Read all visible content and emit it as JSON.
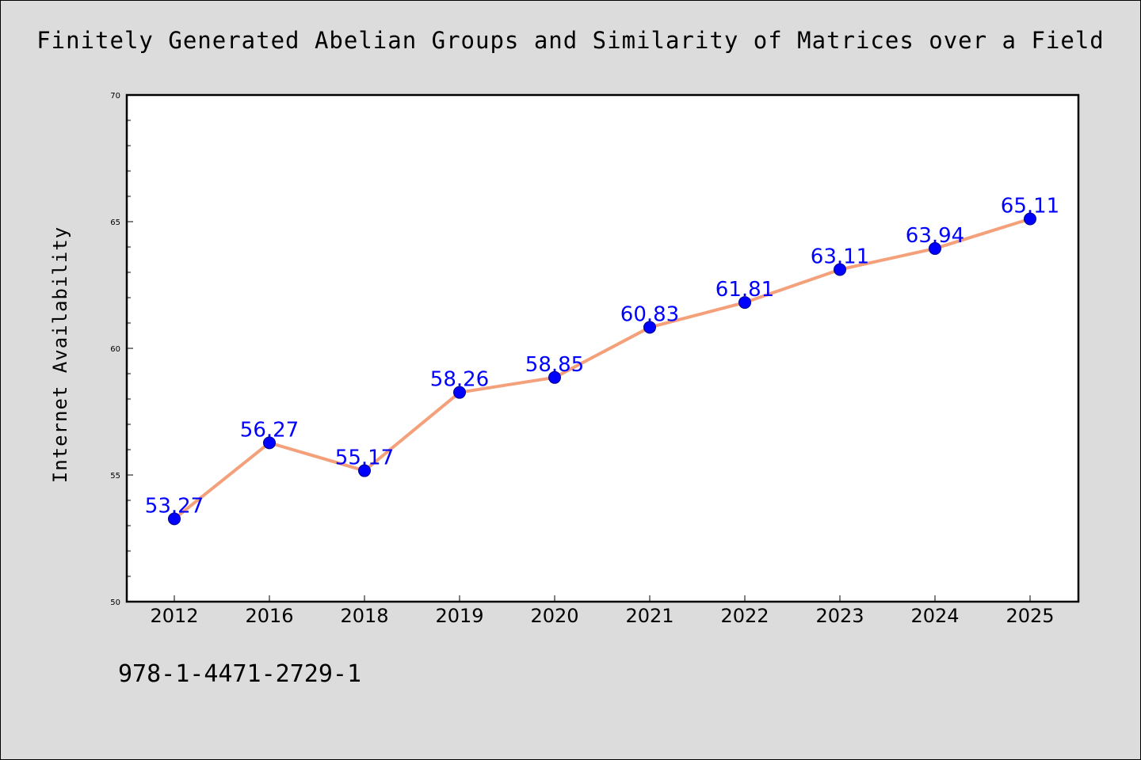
{
  "title": "Finitely Generated Abelian Groups and Similarity of Matrices over a Field",
  "footer": "978-1-4471-2729-1",
  "colors": {
    "background": "#dcdcdc",
    "plot_background": "#ffffff",
    "line": "#f4a07a",
    "marker": "#0000ff",
    "label": "#0000ff"
  },
  "chart_data": {
    "type": "line",
    "title": "Finitely Generated Abelian Groups and Similarity of Matrices over a Field",
    "xlabel": "",
    "ylabel": "Internet Availability",
    "categories": [
      "2012",
      "2016",
      "2018",
      "2019",
      "2020",
      "2021",
      "2022",
      "2023",
      "2024",
      "2025"
    ],
    "series": [
      {
        "values": [
          53.27,
          56.27,
          55.17,
          58.26,
          58.85,
          60.83,
          61.81,
          63.11,
          63.94,
          65.11
        ],
        "labels": [
          "53.27",
          "56.27",
          "55.17",
          "58.26",
          "58.85",
          "60.83",
          "61.81",
          "63.11",
          "63.94",
          "65.11"
        ]
      }
    ],
    "ylim": [
      50,
      70
    ],
    "yticks": [
      "50",
      "55",
      "60",
      "65",
      "70"
    ],
    "grid": false,
    "legend": "none"
  }
}
